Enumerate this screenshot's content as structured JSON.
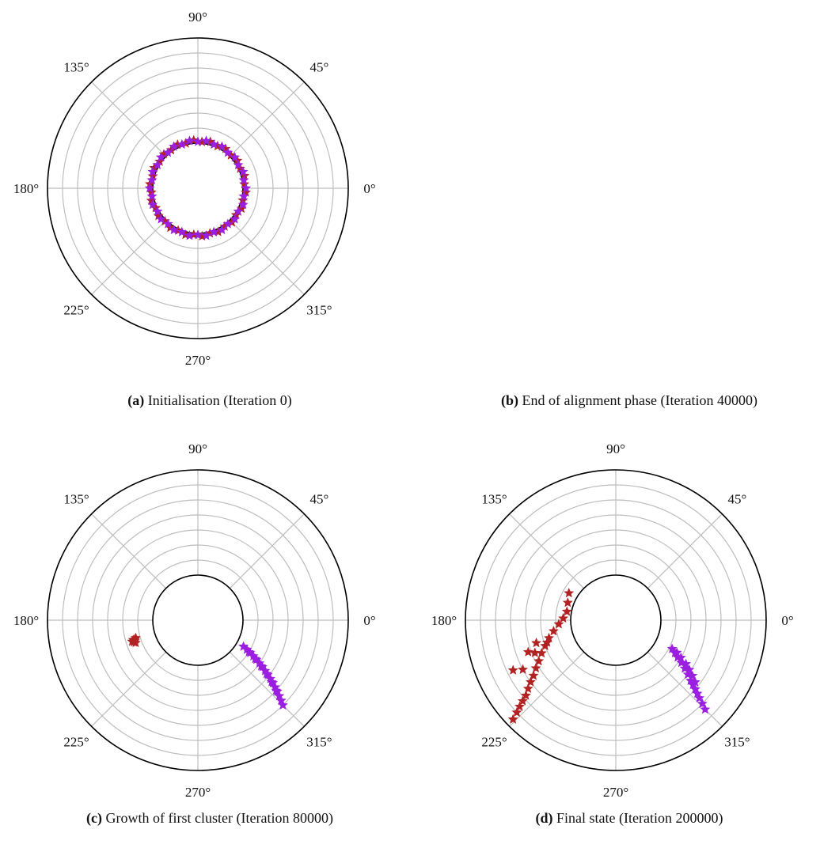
{
  "figure": {
    "panels": [
      {
        "id": "a",
        "tag": "(a)",
        "caption": "Initialisation (Iteration 0)"
      },
      {
        "id": "b",
        "tag": "(b)",
        "caption": "End of alignment phase (Iteration 40000)"
      },
      {
        "id": "c",
        "tag": "(c)",
        "caption": "Growth of first cluster (Iteration 80000)"
      },
      {
        "id": "d",
        "tag": "(d)",
        "caption": "Final state (Iteration 200000)"
      }
    ]
  },
  "chart_data": [
    {
      "type": "scatter",
      "projection": "polar",
      "panel": "a",
      "title": "",
      "angle_ticks": [
        "0°",
        "45°",
        "90°",
        "135°",
        "180°",
        "225°",
        "270°",
        "315°"
      ],
      "radial_rings": 7,
      "inner_radius_fraction": 0.3,
      "grid": true,
      "series": [
        {
          "color": "#b22222",
          "marker": "star",
          "note_visible": "uniform ring on inner circle",
          "points_angle_deg": [
            5,
            15,
            25,
            35,
            45,
            55,
            65,
            75,
            85,
            95,
            105,
            115,
            125,
            135,
            145,
            155,
            165,
            175,
            185,
            195,
            205,
            215,
            225,
            235,
            245,
            255,
            265,
            275,
            285,
            295,
            305,
            315,
            325,
            335,
            345,
            355
          ],
          "points_r": [
            0.31,
            0.32,
            0.31,
            0.32,
            0.31,
            0.32,
            0.31,
            0.32,
            0.31,
            0.32,
            0.31,
            0.32,
            0.31,
            0.32,
            0.31,
            0.32,
            0.31,
            0.32,
            0.31,
            0.32,
            0.31,
            0.32,
            0.31,
            0.32,
            0.31,
            0.32,
            0.31,
            0.32,
            0.31,
            0.32,
            0.31,
            0.32,
            0.31,
            0.32,
            0.31,
            0.32
          ]
        },
        {
          "color": "#9b1fe0",
          "marker": "star",
          "points_angle_deg": [
            0,
            10,
            20,
            30,
            40,
            50,
            60,
            70,
            80,
            90,
            100,
            110,
            120,
            130,
            140,
            150,
            160,
            170,
            180,
            190,
            200,
            210,
            220,
            230,
            240,
            250,
            260,
            270,
            280,
            290,
            300,
            310,
            320,
            330,
            340,
            350
          ],
          "points_r": [
            0.32,
            0.31,
            0.32,
            0.31,
            0.32,
            0.31,
            0.32,
            0.31,
            0.32,
            0.31,
            0.32,
            0.31,
            0.32,
            0.31,
            0.32,
            0.31,
            0.32,
            0.31,
            0.32,
            0.31,
            0.32,
            0.31,
            0.32,
            0.31,
            0.32,
            0.31,
            0.32,
            0.31,
            0.32,
            0.31,
            0.32,
            0.31,
            0.32,
            0.31,
            0.32,
            0.31
          ]
        }
      ]
    },
    {
      "type": "scatter",
      "projection": "polar",
      "panel": "c",
      "angle_ticks": [
        "0°",
        "45°",
        "90°",
        "135°",
        "180°",
        "225°",
        "270°",
        "315°"
      ],
      "radial_rings": 7,
      "inner_radius_fraction": 0.3,
      "grid": true,
      "series": [
        {
          "color": "#b22222",
          "marker": "star",
          "points_angle_deg": [
            196,
            197,
            198,
            199,
            200,
            198,
            197
          ],
          "points_r": [
            0.43,
            0.44,
            0.44,
            0.45,
            0.44,
            0.46,
            0.45
          ]
        },
        {
          "color": "#9b1fe0",
          "marker": "star",
          "points_angle_deg": [
            330,
            329,
            328,
            327,
            326,
            325,
            324,
            323,
            322,
            321,
            320,
            319,
            318,
            317,
            316,
            315,
            328,
            326,
            324,
            322,
            320,
            318
          ],
          "points_r": [
            0.35,
            0.38,
            0.41,
            0.44,
            0.47,
            0.5,
            0.53,
            0.56,
            0.59,
            0.62,
            0.65,
            0.68,
            0.71,
            0.74,
            0.77,
            0.8,
            0.4,
            0.46,
            0.52,
            0.58,
            0.64,
            0.7
          ]
        }
      ]
    },
    {
      "type": "scatter",
      "projection": "polar",
      "panel": "d",
      "angle_ticks": [
        "0°",
        "45°",
        "90°",
        "135°",
        "180°",
        "225°",
        "270°",
        "315°"
      ],
      "radial_rings": 7,
      "inner_radius_fraction": 0.3,
      "grid": true,
      "series": [
        {
          "color": "#b22222",
          "marker": "star",
          "points_angle_deg": [
            150,
            160,
            170,
            178,
            184,
            190,
            195,
            200,
            204,
            208,
            211,
            214,
            216,
            218,
            220,
            221,
            222,
            223,
            224,
            206,
            208,
            200,
            202,
            196,
            198
          ],
          "points_r": [
            0.36,
            0.34,
            0.33,
            0.35,
            0.38,
            0.42,
            0.46,
            0.5,
            0.54,
            0.58,
            0.62,
            0.66,
            0.7,
            0.74,
            0.78,
            0.82,
            0.86,
            0.9,
            0.95,
            0.76,
            0.7,
            0.62,
            0.58,
            0.55,
            0.48
          ]
        },
        {
          "color": "#9b1fe0",
          "marker": "star",
          "points_angle_deg": [
            333,
            331,
            329,
            327,
            325,
            323,
            321,
            320,
            319,
            318,
            317,
            316,
            315,
            332,
            330,
            328,
            326,
            324,
            322
          ],
          "points_r": [
            0.42,
            0.45,
            0.48,
            0.52,
            0.56,
            0.6,
            0.64,
            0.67,
            0.7,
            0.73,
            0.76,
            0.8,
            0.84,
            0.46,
            0.5,
            0.55,
            0.59,
            0.63,
            0.67
          ]
        }
      ]
    }
  ]
}
